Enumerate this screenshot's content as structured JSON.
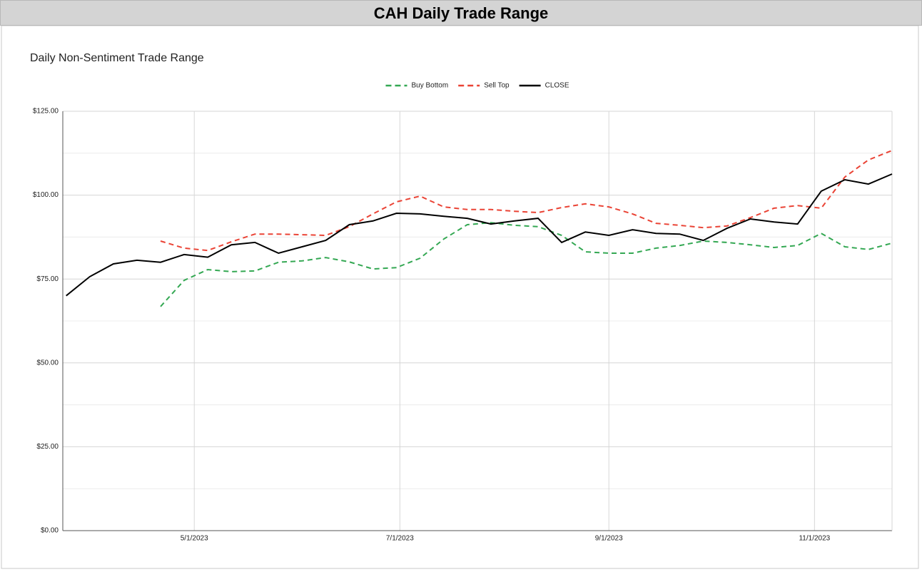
{
  "header": {
    "title": "CAH Daily Trade Range"
  },
  "chart_data": {
    "type": "line",
    "title": "Daily Non-Sentiment Trade Range",
    "x": [
      "2023-03-24",
      "2023-03-31",
      "2023-04-07",
      "2023-04-14",
      "2023-04-21",
      "2023-04-28",
      "2023-05-05",
      "2023-05-12",
      "2023-05-19",
      "2023-05-26",
      "2023-06-02",
      "2023-06-09",
      "2023-06-16",
      "2023-06-23",
      "2023-06-30",
      "2023-07-07",
      "2023-07-14",
      "2023-07-21",
      "2023-07-28",
      "2023-08-04",
      "2023-08-11",
      "2023-08-18",
      "2023-08-25",
      "2023-09-01",
      "2023-09-08",
      "2023-09-15",
      "2023-09-22",
      "2023-09-29",
      "2023-10-06",
      "2023-10-13",
      "2023-10-20",
      "2023-10-27",
      "2023-11-03",
      "2023-11-10",
      "2023-11-17",
      "2023-11-24"
    ],
    "series": [
      {
        "name": "Buy Bottom",
        "color": "#34a853",
        "style": "dashed",
        "values": [
          null,
          null,
          null,
          null,
          66.8,
          74.6,
          77.8,
          77.2,
          77.4,
          80,
          80.4,
          81.4,
          80.1,
          78,
          78.4,
          81.2,
          86.9,
          91.2,
          91.8,
          91,
          90.6,
          88,
          83.1,
          82.7,
          82.7,
          84.2,
          85,
          86.3,
          85.9,
          85.2,
          84.4,
          85,
          88.6,
          84.6,
          83.8,
          85.7
        ]
      },
      {
        "name": "Sell Top",
        "color": "#ea4335",
        "style": "dashed",
        "values": [
          null,
          null,
          null,
          null,
          86.3,
          84.2,
          83.5,
          86.1,
          88.4,
          88.4,
          88.2,
          88,
          90.6,
          94.4,
          98,
          99.7,
          96.5,
          95.7,
          95.7,
          95.2,
          94.8,
          96.3,
          97.4,
          96.5,
          94.4,
          91.6,
          91,
          90.3,
          90.8,
          93.3,
          96.1,
          96.9,
          96.1,
          105.4,
          110.5,
          113.3
        ]
      },
      {
        "name": "CLOSE",
        "color": "#000000",
        "style": "solid",
        "values": [
          70,
          75.7,
          79.5,
          80.6,
          80,
          82.3,
          81.5,
          85.2,
          85.9,
          82.7,
          84.6,
          86.5,
          91.2,
          92.3,
          94.6,
          94.4,
          93.7,
          93.1,
          91.4,
          92.3,
          93.1,
          85.9,
          89,
          88,
          89.7,
          88.6,
          88.4,
          86.5,
          90.1,
          92.9,
          92,
          91.4,
          101.2,
          104.6,
          103.3,
          106.3
        ]
      }
    ],
    "xlim": [
      "2023-03-23",
      "2023-11-24"
    ],
    "xticks": [
      {
        "value": "2023-05-01",
        "label": "5/1/2023"
      },
      {
        "value": "2023-07-01",
        "label": "7/1/2023"
      },
      {
        "value": "2023-09-01",
        "label": "9/1/2023"
      },
      {
        "value": "2023-11-01",
        "label": "11/1/2023"
      }
    ],
    "ylim": [
      0,
      125
    ],
    "yticks": [
      {
        "value": 0,
        "label": "$0.00"
      },
      {
        "value": 25,
        "label": "$25.00"
      },
      {
        "value": 50,
        "label": "$50.00"
      },
      {
        "value": 75,
        "label": "$75.00"
      },
      {
        "value": 100,
        "label": "$100.00"
      },
      {
        "value": 125,
        "label": "$125.00"
      }
    ],
    "grid": true,
    "minor_grid": true,
    "legend": "top"
  }
}
